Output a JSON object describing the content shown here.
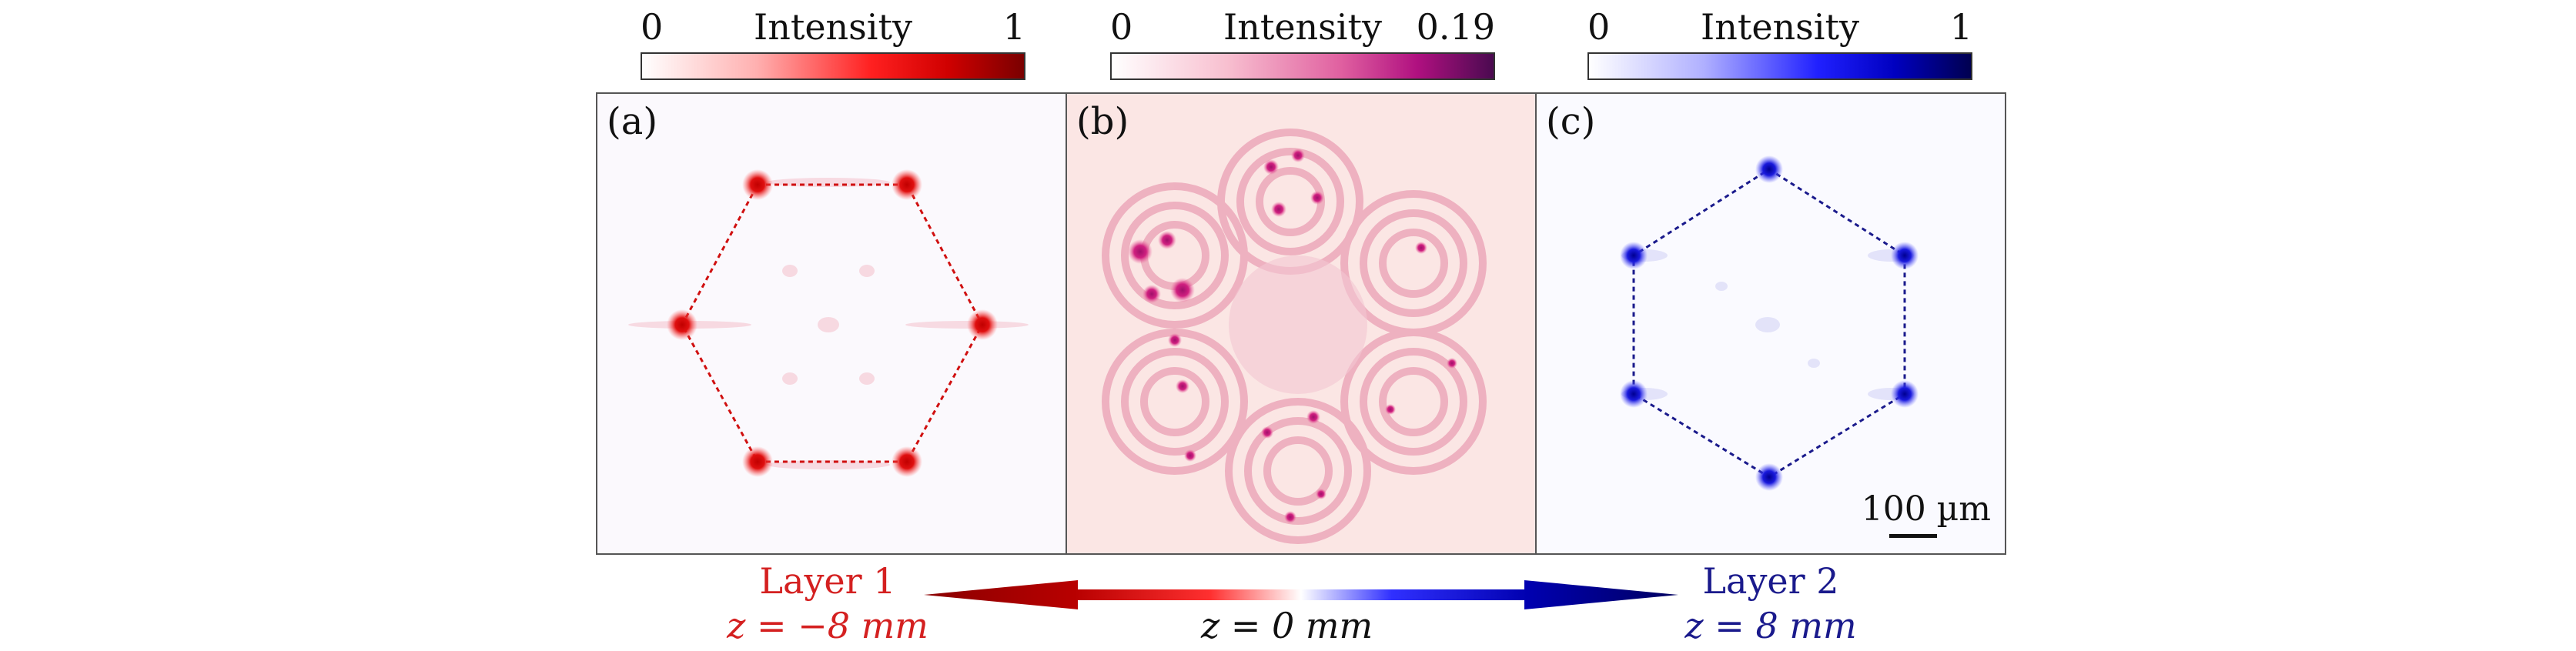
{
  "colorbars": [
    {
      "min": "0",
      "title": "Intensity",
      "max": "1",
      "color": "#b30000"
    },
    {
      "min": "0",
      "title": "Intensity",
      "max": "0.19",
      "color": "#6a0a6a"
    },
    {
      "min": "0",
      "title": "Intensity",
      "max": "1",
      "color": "#0a0a6a"
    }
  ],
  "panels": [
    {
      "label": "(a)",
      "color": "#e01010"
    },
    {
      "label": "(b)",
      "color": "#d0207a"
    },
    {
      "label": "(c)",
      "color": "#1a1acc"
    }
  ],
  "scale_bar": "100 µm",
  "layer1": {
    "name": "Layer 1",
    "z": "z = −8 mm",
    "color": "#d42020"
  },
  "layer2": {
    "name": "Layer 2",
    "z": "z = 8 mm",
    "color": "#1a1a8c"
  },
  "center": {
    "z": "z = 0 mm"
  }
}
